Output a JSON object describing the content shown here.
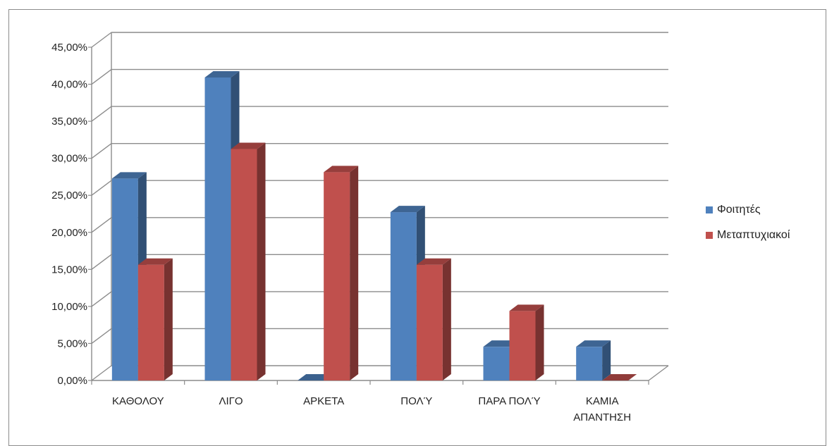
{
  "chart_data": {
    "type": "bar",
    "style": "3d-clustered-column",
    "categories": [
      [
        "ΚΑΘΟΛΟΥ"
      ],
      [
        "ΛΙΓΟ"
      ],
      [
        "ΑΡΚΕΤΑ"
      ],
      [
        "ΠΟΛΎ"
      ],
      [
        "ΠΑΡΑ ΠΟΛΎ"
      ],
      [
        "ΚΑΜΙΑ",
        "ΑΠΑΝΤΗΣΗ"
      ]
    ],
    "series": [
      {
        "name": "Φοιτητές",
        "color": "#4f81bd",
        "values": [
          27.27,
          40.91,
          0.0,
          22.73,
          4.55,
          4.55
        ]
      },
      {
        "name": "Μεταπτυχιακοί",
        "color": "#c0504d",
        "values": [
          15.63,
          31.25,
          28.13,
          15.63,
          9.38,
          0.0
        ]
      }
    ],
    "ylim": [
      0,
      45
    ],
    "yticks": [
      "0,00%",
      "5,00%",
      "10,00%",
      "15,00%",
      "20,00%",
      "25,00%",
      "30,00%",
      "35,00%",
      "40,00%",
      "45,00%"
    ],
    "ytick_values": [
      0,
      5,
      10,
      15,
      20,
      25,
      30,
      35,
      40,
      45
    ],
    "grid": true,
    "legend_position": "right",
    "title": "",
    "xlabel": "",
    "ylabel": ""
  }
}
